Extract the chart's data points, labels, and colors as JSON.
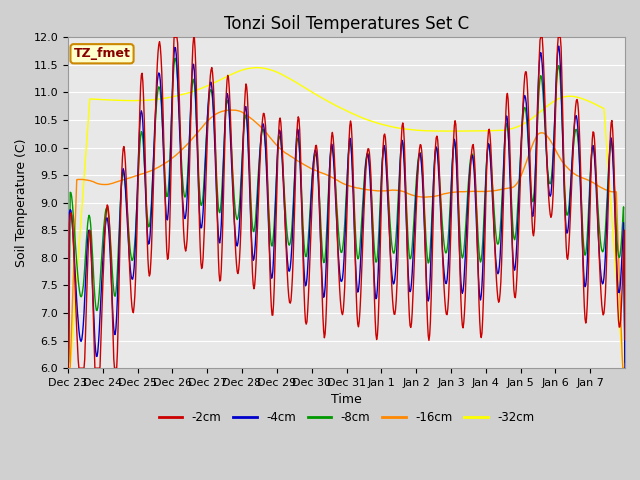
{
  "title": "Tonzi Soil Temperatures Set C",
  "xlabel": "Time",
  "ylabel": "Soil Temperature (C)",
  "ylim": [
    6.0,
    12.0
  ],
  "yticks": [
    6.0,
    6.5,
    7.0,
    7.5,
    8.0,
    8.5,
    9.0,
    9.5,
    10.0,
    10.5,
    11.0,
    11.5,
    12.0
  ],
  "xtick_labels": [
    "Dec 23",
    "Dec 24",
    "Dec 25",
    "Dec 26",
    "Dec 27",
    "Dec 28",
    "Dec 29",
    "Dec 30",
    "Dec 31",
    "Jan 1",
    "Jan 2",
    "Jan 3",
    "Jan 4",
    "Jan 5",
    "Jan 6",
    "Jan 7"
  ],
  "series_colors": [
    "#cc0000",
    "#0000cc",
    "#009900",
    "#ff8800",
    "#ffff00"
  ],
  "series_labels": [
    "-2cm",
    "-4cm",
    "-8cm",
    "-16cm",
    "-32cm"
  ],
  "legend_label": "TZ_fmet",
  "legend_bg": "#ffffcc",
  "legend_border": "#cc8800",
  "plot_bg": "#e8e8e8",
  "grid_color": "#ffffff",
  "title_fontsize": 12,
  "axis_fontsize": 9,
  "tick_fontsize": 8
}
